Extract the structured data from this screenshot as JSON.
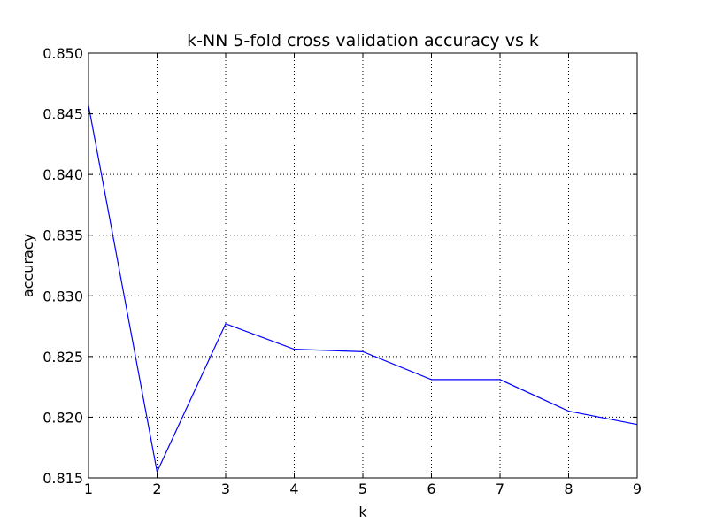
{
  "chart_data": {
    "type": "line",
    "title": "k-NN 5-fold cross validation accuracy vs k",
    "xlabel": "k",
    "ylabel": "accuracy",
    "x": [
      1,
      2,
      3,
      4,
      5,
      6,
      7,
      8,
      9
    ],
    "series": [
      {
        "values": [
          0.8457,
          0.8155,
          0.8277,
          0.8256,
          0.8254,
          0.8231,
          0.8231,
          0.8205,
          0.8194
        ],
        "color": "#0000ff"
      }
    ],
    "xlim": [
      1,
      9
    ],
    "ylim": [
      0.815,
      0.85
    ],
    "xticks": [
      "1",
      "2",
      "3",
      "4",
      "5",
      "6",
      "7",
      "8",
      "9"
    ],
    "yticks": [
      "0.815",
      "0.820",
      "0.825",
      "0.830",
      "0.835",
      "0.840",
      "0.845",
      "0.850"
    ],
    "grid": true,
    "legend": "none"
  }
}
